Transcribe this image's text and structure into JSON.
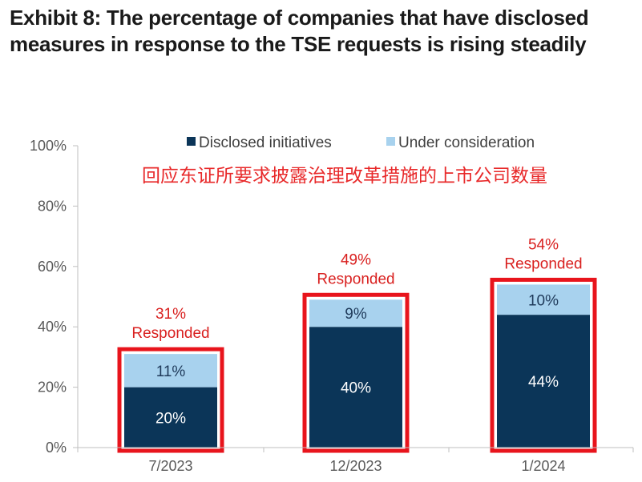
{
  "title": {
    "line1": "Exhibit 8: The percentage of companies that have disclosed",
    "line2": "measures in response to the TSE requests is rising steadily"
  },
  "annotation_cn": "回应东证所要求披露治理改革措施的上市公司数量",
  "colors": {
    "disclosed": "#0b3558",
    "under_consideration": "#a8d2ee",
    "highlight": "#e8141c",
    "annotation": "#e8292a"
  },
  "chart_data": {
    "type": "bar",
    "stacked": true,
    "categories": [
      "7/2023",
      "12/2023",
      "1/2024"
    ],
    "series": [
      {
        "name": "Disclosed initiatives",
        "values": [
          20,
          40,
          44
        ],
        "labels": [
          "20%",
          "40%",
          "44%"
        ]
      },
      {
        "name": "Under consideration",
        "values": [
          11,
          9,
          10
        ],
        "labels": [
          "11%",
          "9%",
          "10%"
        ]
      }
    ],
    "totals": [
      {
        "pct": "31%",
        "text": "Responded"
      },
      {
        "pct": "49%",
        "text": "Responded"
      },
      {
        "pct": "54%",
        "text": "Responded"
      }
    ],
    "ylim": [
      0,
      100
    ],
    "yticks": [
      0,
      20,
      40,
      60,
      80,
      100
    ],
    "ytick_labels": [
      "0%",
      "20%",
      "40%",
      "60%",
      "80%",
      "100%"
    ],
    "legend_position": "top"
  }
}
